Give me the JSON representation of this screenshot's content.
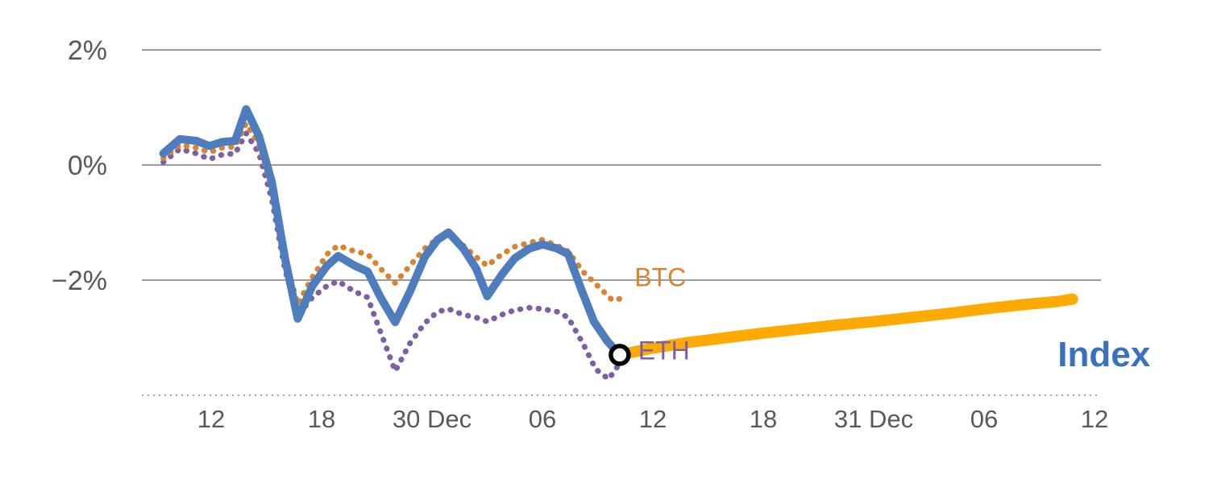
{
  "chart_data": {
    "type": "line",
    "title": "",
    "xlabel": "",
    "ylabel": "",
    "x_unit": "hours since 29 Dec 00:00",
    "x_range_hours": [
      8.6,
      60.5
    ],
    "y_range_pct": [
      -4.3,
      2.6
    ],
    "grid": "horizontal",
    "y_gridlines": [
      {
        "value": 2,
        "label": "2%",
        "style": "solid"
      },
      {
        "value": 0,
        "label": "0%",
        "style": "solid"
      },
      {
        "value": -2,
        "label": "−2%",
        "style": "solid"
      },
      {
        "value": -4,
        "label": "",
        "style": "dotted"
      }
    ],
    "x_ticks": [
      {
        "hour": 12,
        "label": "12"
      },
      {
        "hour": 18,
        "label": "18"
      },
      {
        "hour": 24,
        "label": "30 Dec"
      },
      {
        "hour": 30,
        "label": "06"
      },
      {
        "hour": 36,
        "label": "12"
      },
      {
        "hour": 42,
        "label": "18"
      },
      {
        "hour": 48,
        "label": "31 Dec"
      },
      {
        "hour": 54,
        "label": "06"
      },
      {
        "hour": 60,
        "label": "12"
      }
    ],
    "series": [
      {
        "id": "eth",
        "name": "ETH",
        "color": "#7d5fa6",
        "style": "dotted",
        "width": 7,
        "points": [
          [
            9.4,
            0.05
          ],
          [
            10.3,
            0.28
          ],
          [
            11.2,
            0.2
          ],
          [
            11.9,
            0.1
          ],
          [
            12.6,
            0.18
          ],
          [
            13.3,
            0.2
          ],
          [
            13.9,
            0.55
          ],
          [
            14.6,
            0.2
          ],
          [
            15.3,
            -0.6
          ],
          [
            16.0,
            -1.8
          ],
          [
            16.7,
            -2.62
          ],
          [
            17.5,
            -2.3
          ],
          [
            18.3,
            -2.1
          ],
          [
            18.9,
            -2.02
          ],
          [
            19.8,
            -2.2
          ],
          [
            20.5,
            -2.3
          ],
          [
            21.2,
            -2.9
          ],
          [
            22.0,
            -3.58
          ],
          [
            22.8,
            -3.1
          ],
          [
            23.6,
            -2.75
          ],
          [
            24.3,
            -2.55
          ],
          [
            24.9,
            -2.5
          ],
          [
            25.7,
            -2.6
          ],
          [
            26.4,
            -2.65
          ],
          [
            27.0,
            -2.72
          ],
          [
            27.8,
            -2.6
          ],
          [
            28.5,
            -2.52
          ],
          [
            29.3,
            -2.48
          ],
          [
            30.0,
            -2.5
          ],
          [
            30.8,
            -2.55
          ],
          [
            31.4,
            -2.65
          ],
          [
            32.2,
            -3.1
          ],
          [
            32.9,
            -3.55
          ],
          [
            33.6,
            -3.72
          ],
          [
            34.3,
            -3.4
          ]
        ]
      },
      {
        "id": "btc",
        "name": "BTC",
        "color": "#d9822f",
        "style": "dotted",
        "width": 7,
        "points": [
          [
            9.4,
            0.12
          ],
          [
            10.3,
            0.35
          ],
          [
            11.2,
            0.3
          ],
          [
            11.9,
            0.22
          ],
          [
            12.6,
            0.3
          ],
          [
            13.3,
            0.32
          ],
          [
            13.9,
            0.72
          ],
          [
            14.6,
            0.35
          ],
          [
            15.3,
            -0.4
          ],
          [
            16.0,
            -1.6
          ],
          [
            16.7,
            -2.42
          ],
          [
            17.5,
            -1.95
          ],
          [
            18.3,
            -1.55
          ],
          [
            18.9,
            -1.4
          ],
          [
            19.8,
            -1.5
          ],
          [
            20.5,
            -1.55
          ],
          [
            21.2,
            -1.8
          ],
          [
            22.0,
            -2.05
          ],
          [
            22.8,
            -1.75
          ],
          [
            23.6,
            -1.45
          ],
          [
            24.3,
            -1.28
          ],
          [
            24.9,
            -1.2
          ],
          [
            25.7,
            -1.4
          ],
          [
            26.4,
            -1.6
          ],
          [
            27.0,
            -1.75
          ],
          [
            27.8,
            -1.55
          ],
          [
            28.5,
            -1.42
          ],
          [
            29.3,
            -1.35
          ],
          [
            30.0,
            -1.3
          ],
          [
            30.8,
            -1.4
          ],
          [
            31.4,
            -1.5
          ],
          [
            32.2,
            -1.85
          ],
          [
            33.0,
            -2.1
          ],
          [
            33.8,
            -2.35
          ],
          [
            34.6,
            -2.3
          ]
        ]
      },
      {
        "id": "index-history",
        "name": "Index",
        "color": "#4d7dbd",
        "style": "solid",
        "width": 10,
        "points": [
          [
            9.4,
            0.2
          ],
          [
            10.3,
            0.45
          ],
          [
            11.2,
            0.42
          ],
          [
            11.9,
            0.33
          ],
          [
            12.6,
            0.4
          ],
          [
            13.3,
            0.42
          ],
          [
            13.9,
            0.97
          ],
          [
            14.6,
            0.5
          ],
          [
            15.3,
            -0.3
          ],
          [
            16.0,
            -1.6
          ],
          [
            16.7,
            -2.67
          ],
          [
            17.5,
            -2.1
          ],
          [
            18.3,
            -1.75
          ],
          [
            18.9,
            -1.58
          ],
          [
            19.8,
            -1.75
          ],
          [
            20.5,
            -1.85
          ],
          [
            21.2,
            -2.3
          ],
          [
            22.0,
            -2.73
          ],
          [
            22.8,
            -2.2
          ],
          [
            23.6,
            -1.6
          ],
          [
            24.3,
            -1.3
          ],
          [
            24.9,
            -1.17
          ],
          [
            25.7,
            -1.45
          ],
          [
            26.4,
            -1.8
          ],
          [
            27.0,
            -2.28
          ],
          [
            27.8,
            -1.9
          ],
          [
            28.5,
            -1.62
          ],
          [
            29.3,
            -1.45
          ],
          [
            30.0,
            -1.38
          ],
          [
            30.8,
            -1.45
          ],
          [
            31.4,
            -1.55
          ],
          [
            32.1,
            -2.15
          ],
          [
            32.8,
            -2.72
          ],
          [
            33.5,
            -3.05
          ],
          [
            34.2,
            -3.3
          ]
        ]
      },
      {
        "id": "index-projection",
        "name": "Index",
        "color": "#ffaa00",
        "style": "solid",
        "width": 14,
        "points": [
          [
            34.2,
            -3.3
          ],
          [
            36,
            -3.18
          ],
          [
            38,
            -3.08
          ],
          [
            40,
            -3.0
          ],
          [
            42,
            -2.92
          ],
          [
            44,
            -2.85
          ],
          [
            46,
            -2.78
          ],
          [
            48,
            -2.72
          ],
          [
            50,
            -2.65
          ],
          [
            52,
            -2.58
          ],
          [
            54,
            -2.5
          ],
          [
            56,
            -2.43
          ],
          [
            58,
            -2.37
          ],
          [
            58.8,
            -2.33
          ]
        ]
      }
    ],
    "marker": {
      "name": "current-index-point",
      "hour": 34.2,
      "value": -3.3,
      "fill": "#ffffff",
      "stroke": "#000000"
    },
    "annotations": [
      {
        "text": "BTC",
        "hour": 35.0,
        "value": -1.95,
        "color": "#d9822f",
        "font_size": 32,
        "bold": false
      },
      {
        "text": "ETH",
        "hour": 35.2,
        "value": -3.22,
        "color": "#7d5fa6",
        "font_size": 32,
        "bold": false
      },
      {
        "text": "Index",
        "hour": 58.0,
        "value": -3.28,
        "color": "#3a70c2",
        "font_size": 44,
        "bold": true
      }
    ],
    "axis_colors": {
      "gridline": "#9b9b9b",
      "dotted_baseline": "#a9a9a9",
      "tick_label": "#595959"
    }
  }
}
